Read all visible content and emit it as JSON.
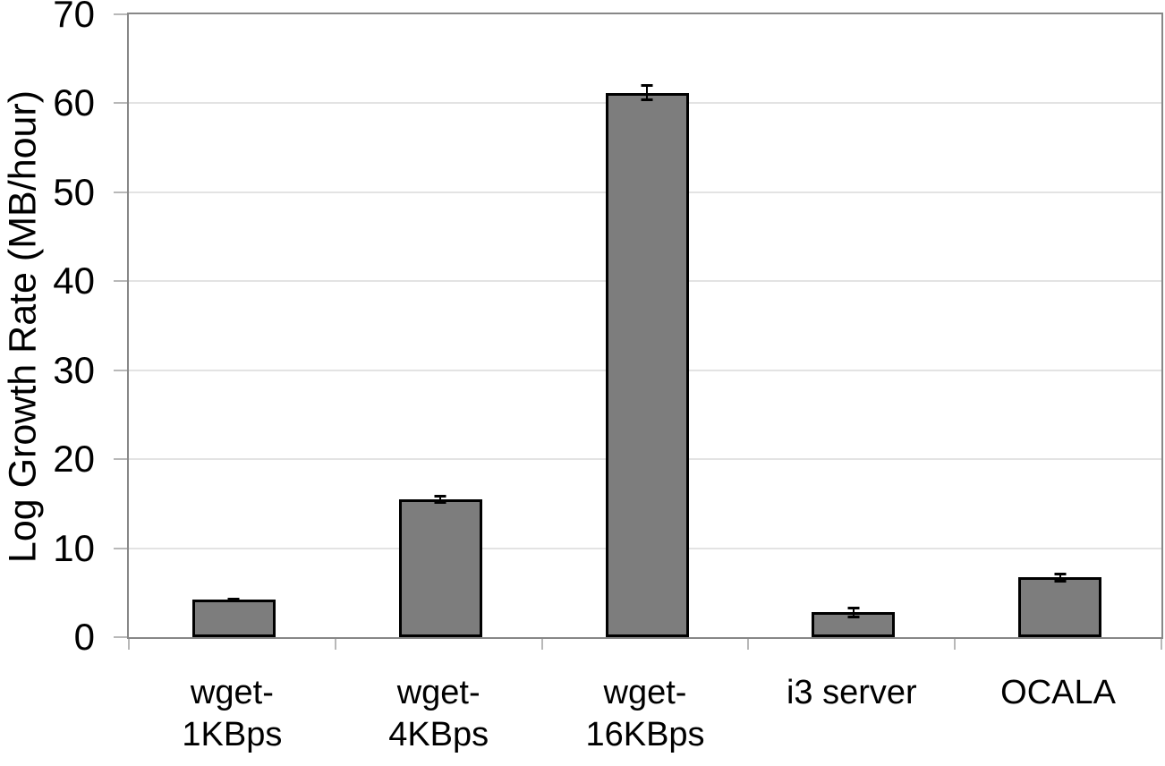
{
  "chart_data": {
    "type": "bar",
    "title": "",
    "xlabel": "",
    "ylabel": "Log Growth Rate (MB/hour)",
    "ylim": [
      0,
      70
    ],
    "yticks": [
      0,
      10,
      20,
      30,
      40,
      50,
      60,
      70
    ],
    "grid": true,
    "legend": false,
    "categories": [
      "wget-1KBps",
      "wget-4KBps",
      "wget-16KBps",
      "i3 server",
      "OCALA"
    ],
    "category_label_lines": [
      [
        "wget-",
        "1KBps"
      ],
      [
        "wget-",
        "4KBps"
      ],
      [
        "wget-",
        "16KBps"
      ],
      [
        "i3 server"
      ],
      [
        "OCALA"
      ]
    ],
    "series": [
      {
        "name": "Log Growth Rate",
        "values": [
          4.2,
          15.5,
          61.2,
          2.8,
          6.7
        ],
        "error_bars": [
          0.2,
          0.5,
          1.0,
          0.65,
          0.55
        ]
      }
    ],
    "colors": {
      "bar_fill": "#7d7d7d",
      "bar_border": "#000000",
      "error_bar": "#000000",
      "gridline": "#e3e3e3",
      "axis_border": "#878787",
      "tick": "#b8b8b8",
      "text": "#000000",
      "background": "#ffffff"
    }
  }
}
